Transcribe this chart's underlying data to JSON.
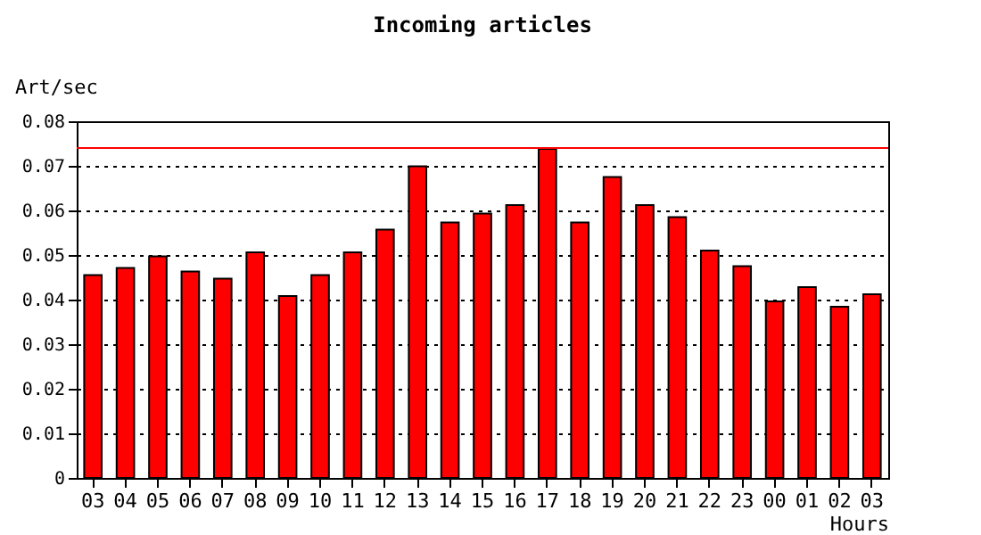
{
  "chart_data": {
    "type": "bar",
    "title": "Incoming articles",
    "ylabel": "Art/sec",
    "xlabel": "Hours",
    "categories": [
      "03",
      "04",
      "05",
      "06",
      "07",
      "08",
      "09",
      "10",
      "11",
      "12",
      "13",
      "14",
      "15",
      "16",
      "17",
      "18",
      "19",
      "20",
      "21",
      "22",
      "23",
      "00",
      "01",
      "02",
      "03"
    ],
    "values": [
      0.0455,
      0.0471,
      0.0497,
      0.0463,
      0.0447,
      0.0506,
      0.0408,
      0.0455,
      0.0506,
      0.0557,
      0.0699,
      0.0573,
      0.0593,
      0.0612,
      0.0738,
      0.0573,
      0.0675,
      0.0612,
      0.0585,
      0.051,
      0.0475,
      0.0396,
      0.0428,
      0.0384,
      0.0412
    ],
    "color": "#ff0000",
    "ylim": [
      0,
      0.08
    ],
    "yticks": [
      0,
      0.01,
      0.02,
      0.03,
      0.04,
      0.05,
      0.06,
      0.07,
      0.08
    ],
    "grid": "y",
    "ref_lines": [
      {
        "axis": "y",
        "value": 0.074,
        "color": "#ff0000"
      }
    ]
  }
}
